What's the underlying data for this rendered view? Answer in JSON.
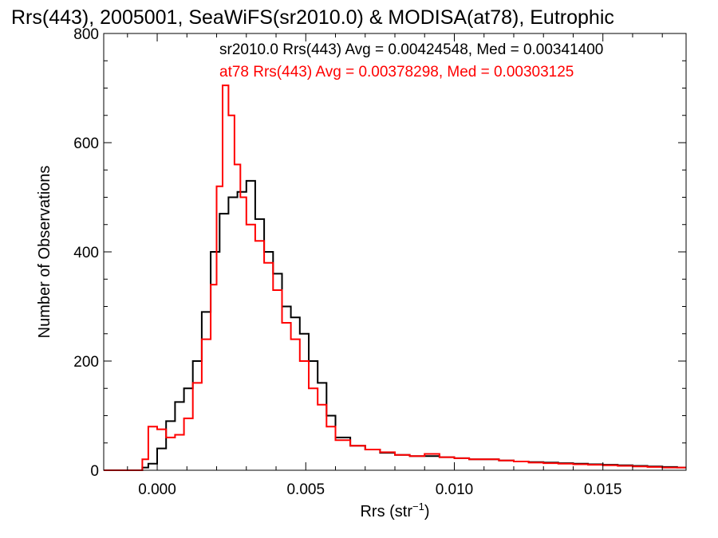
{
  "chart_data": {
    "type": "line",
    "title": "Rrs(443), 2005001, SeaWiFS(sr2010.0) & MODISA(at78), Eutrophic",
    "xlabel": "Rrs (str",
    "xlabel_sup": "−1",
    "xlabel_close": ")",
    "ylabel": "Number of Observations",
    "xlim": [
      -0.0018,
      0.0178
    ],
    "ylim": [
      0,
      800
    ],
    "xticks": [
      0.0,
      0.005,
      0.01,
      0.015
    ],
    "xtick_labels": [
      "0.000",
      "0.005",
      "0.010",
      "0.015"
    ],
    "yticks": [
      0,
      200,
      400,
      600,
      800
    ],
    "ytick_labels": [
      "0",
      "200",
      "400",
      "600",
      "800"
    ],
    "grid": false,
    "annotations": [
      "sr2010.0 Rrs(443) Avg = 0.00424548, Med = 0.00341400",
      "at78 Rrs(443) Avg = 0.00378298, Med = 0.00303125"
    ],
    "series": [
      {
        "label": "sr2010.0",
        "color": "#000000",
        "style": "step",
        "x": [
          -0.0018,
          -0.0008,
          -0.0005,
          -0.0003,
          0.0,
          0.0003,
          0.0006,
          0.0009,
          0.0012,
          0.0015,
          0.0018,
          0.0021,
          0.0024,
          0.0027,
          0.003,
          0.0033,
          0.0036,
          0.0039,
          0.0042,
          0.0045,
          0.0048,
          0.0051,
          0.0054,
          0.0057,
          0.006,
          0.0065,
          0.007,
          0.0075,
          0.008,
          0.0085,
          0.009,
          0.0095,
          0.01,
          0.0105,
          0.011,
          0.0115,
          0.012,
          0.0125,
          0.013,
          0.0135,
          0.014,
          0.0145,
          0.015,
          0.0155,
          0.016,
          0.0165,
          0.017,
          0.0175,
          0.0178
        ],
        "values": [
          0,
          0,
          5,
          12,
          40,
          90,
          125,
          150,
          200,
          290,
          400,
          470,
          500,
          510,
          530,
          460,
          400,
          360,
          300,
          280,
          250,
          200,
          160,
          100,
          60,
          45,
          38,
          32,
          28,
          26,
          26,
          24,
          22,
          20,
          20,
          18,
          16,
          15,
          14,
          13,
          12,
          11,
          10,
          9,
          8,
          7,
          6,
          5,
          5
        ]
      },
      {
        "label": "at78",
        "color": "#ff0000",
        "style": "step",
        "x": [
          -0.0018,
          -0.0008,
          -0.0005,
          -0.0003,
          0.0,
          0.0003,
          0.0006,
          0.0009,
          0.0012,
          0.0015,
          0.0018,
          0.002,
          0.0022,
          0.0024,
          0.0026,
          0.0028,
          0.003,
          0.0033,
          0.0036,
          0.0039,
          0.0042,
          0.0045,
          0.0048,
          0.0051,
          0.0054,
          0.0057,
          0.006,
          0.0065,
          0.007,
          0.0075,
          0.008,
          0.0085,
          0.009,
          0.0095,
          0.01,
          0.0105,
          0.011,
          0.0115,
          0.012,
          0.0125,
          0.013,
          0.0135,
          0.014,
          0.0145,
          0.015,
          0.0155,
          0.016,
          0.0165,
          0.017,
          0.0175,
          0.0178
        ],
        "values": [
          0,
          0,
          20,
          80,
          75,
          60,
          65,
          95,
          160,
          240,
          340,
          520,
          705,
          650,
          560,
          500,
          450,
          420,
          380,
          330,
          270,
          240,
          200,
          150,
          120,
          80,
          55,
          45,
          38,
          33,
          28,
          26,
          30,
          24,
          22,
          20,
          20,
          18,
          16,
          14,
          13,
          12,
          11,
          10,
          9,
          8,
          7,
          6,
          5,
          5,
          5
        ]
      }
    ]
  }
}
